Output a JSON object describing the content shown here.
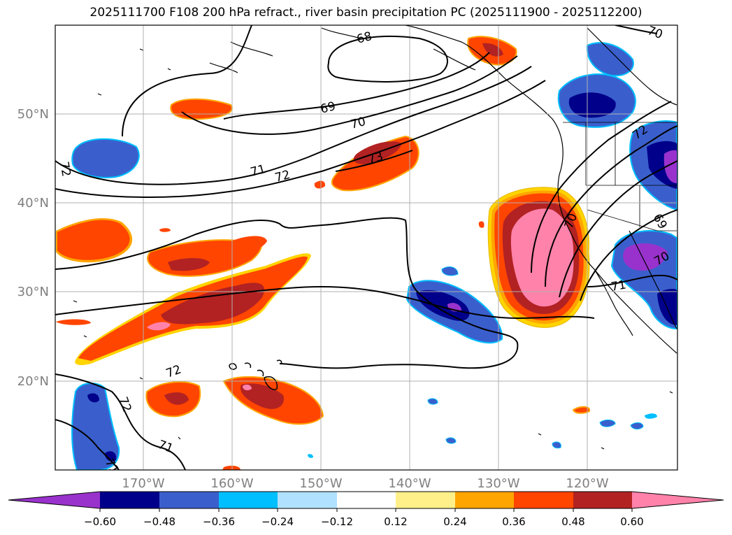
{
  "title": "2025111700 F108 200 hPa refract., river basin precipitation PC (2025111900 - 2025112200)",
  "lat_labels": [
    "50°N",
    "40°N",
    "30°N",
    "20°N"
  ],
  "lon_labels": [
    "170°W",
    "160°W",
    "150°W",
    "140°W",
    "130°W",
    "120°W"
  ],
  "contour_labels": [
    "68",
    "69",
    "70",
    "71",
    "72",
    "73",
    "72",
    "71",
    "72",
    "70",
    "69",
    "70",
    "71",
    "72",
    "71",
    "70",
    "72"
  ],
  "colorbar": {
    "ticks": [
      "−0.60",
      "−0.48",
      "−0.36",
      "−0.24",
      "−0.12",
      "0.12",
      "0.24",
      "0.36",
      "0.48",
      "0.60"
    ],
    "colors": [
      "#9932cc",
      "#00008b",
      "#3a5fcd",
      "#00bfff",
      "#b0e2ff",
      "#ffffff",
      "#fff08a",
      "#ffa500",
      "#ff4500",
      "#b22222",
      "#ff82ab"
    ]
  },
  "colors": {
    "land_outline": "#000000",
    "grid": "#b0b0b0",
    "axis_label": "#808080"
  }
}
